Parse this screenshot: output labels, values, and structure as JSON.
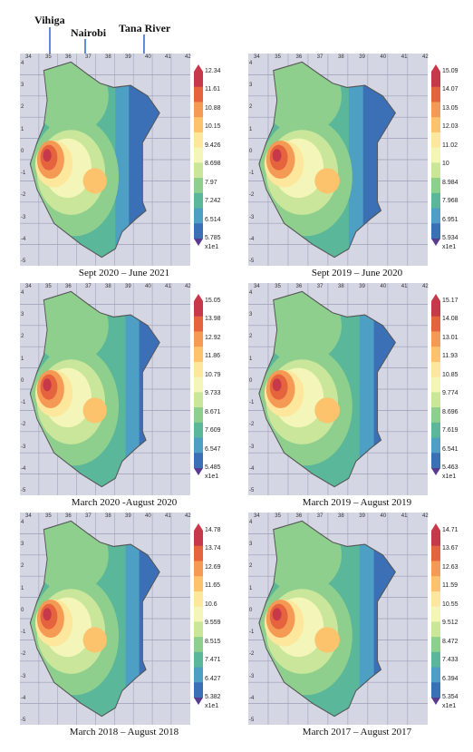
{
  "annotations": {
    "vihiga": "Vihiga",
    "nairobi": "Nairobi",
    "tana_river": "Tana River"
  },
  "colorbar_unit": "x1e1",
  "lon_ticks": [
    "34",
    "35",
    "36",
    "37",
    "38",
    "39",
    "40",
    "41",
    "42"
  ],
  "lat_ticks": [
    "4",
    "3",
    "2",
    "1",
    "0",
    "-1",
    "-2",
    "-3",
    "-4",
    "-5"
  ],
  "colors": {
    "ramp": [
      "#3b6fb6",
      "#4d9fc4",
      "#5bb79a",
      "#8fcf8d",
      "#c9e69a",
      "#f3f6b8",
      "#fde79c",
      "#fcc26c",
      "#f59a55",
      "#e6643d",
      "#c7384b"
    ],
    "grid_bg": "#d5d6e4",
    "grid_line": "#9c9fb6"
  },
  "panels": [
    {
      "caption": "Sept 2020 – June 2021",
      "colorbar_ticks": [
        "12.34",
        "11.61",
        "10.88",
        "10.15",
        "9.426",
        "8.698",
        "7.97",
        "7.242",
        "6.514",
        "5.785"
      ],
      "extent": "2020"
    },
    {
      "caption": "Sept 2019 – June 2020",
      "colorbar_ticks": [
        "15.09",
        "14.07",
        "13.05",
        "12.03",
        "11.02",
        "10",
        "8.984",
        "7.968",
        "6.951",
        "5.934"
      ],
      "extent": "2020"
    },
    {
      "caption": "March 2020 -August 2020",
      "colorbar_ticks": [
        "15.05",
        "13.98",
        "12.92",
        "11.86",
        "10.79",
        "9.733",
        "8.671",
        "7.609",
        "6.547",
        "5.485"
      ],
      "extent": "main"
    },
    {
      "caption": "March 2019 – August 2019",
      "colorbar_ticks": [
        "15.17",
        "14.08",
        "13.01",
        "11.93",
        "10.85",
        "9.774",
        "8.696",
        "7.619",
        "6.541",
        "5.463"
      ],
      "extent": "main"
    },
    {
      "caption": "March 2018 – August 2018",
      "colorbar_ticks": [
        "14.78",
        "13.74",
        "12.69",
        "11.65",
        "10.6",
        "9.559",
        "8.515",
        "7.471",
        "6.427",
        "5.382"
      ],
      "extent": "main"
    },
    {
      "caption": "March 2017 – August 2017",
      "colorbar_ticks": [
        "14.71",
        "13.67",
        "12.63",
        "11.59",
        "10.55",
        "9.512",
        "8.472",
        "7.433",
        "6.394",
        "5.354"
      ],
      "extent": "main"
    }
  ]
}
